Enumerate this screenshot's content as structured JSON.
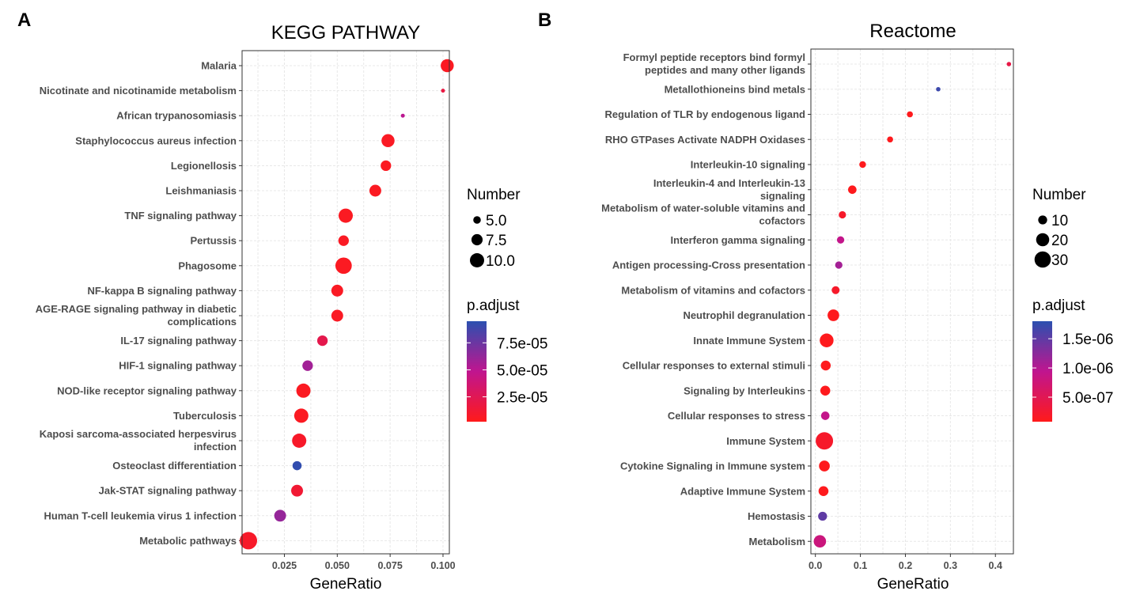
{
  "panels": {
    "a": "A",
    "b": "B"
  },
  "chart_data": [
    {
      "type": "scatter",
      "title": "KEGG PATHWAY",
      "xlabel": "GeneRatio",
      "ylabel": "",
      "xlim": [
        0.005,
        0.103
      ],
      "xticks": [
        0.025,
        0.05,
        0.075,
        0.1
      ],
      "xtick_labels": [
        "0.025",
        "0.050",
        "0.075",
        "0.100"
      ],
      "grid": true,
      "categories": [
        {
          "label": "Malaria",
          "x": 0.102,
          "number": 9,
          "padj": 5e-06
        },
        {
          "label": "Nicotinate and nicotinamide metabolism",
          "x": 0.1,
          "number": 3,
          "padj": 1.8e-05
        },
        {
          "label": "African trypanosomiasis",
          "x": 0.081,
          "number": 3,
          "padj": 5e-05
        },
        {
          "label": "Staphylococcus aureus infection",
          "x": 0.074,
          "number": 9,
          "padj": 6e-06
        },
        {
          "label": "Legionellosis",
          "x": 0.073,
          "number": 7,
          "padj": 5e-06
        },
        {
          "label": "Leishmaniasis",
          "x": 0.068,
          "number": 8,
          "padj": 5e-06
        },
        {
          "label": "TNF signaling pathway",
          "x": 0.054,
          "number": 10,
          "padj": 5e-06
        },
        {
          "label": "Pertussis",
          "x": 0.053,
          "number": 7,
          "padj": 6e-06
        },
        {
          "label": "Phagosome",
          "x": 0.053,
          "number": 12,
          "padj": 5e-06
        },
        {
          "label": "NF-kappa B signaling pathway",
          "x": 0.05,
          "number": 8,
          "padj": 6e-06
        },
        {
          "label": "AGE-RAGE signaling pathway in diabetic\ncomplications",
          "x": 0.05,
          "number": 8,
          "padj": 6e-06
        },
        {
          "label": "IL-17 signaling pathway",
          "x": 0.043,
          "number": 7,
          "padj": 2.2e-05
        },
        {
          "label": "HIF-1 signaling pathway",
          "x": 0.036,
          "number": 7,
          "padj": 5.8e-05
        },
        {
          "label": "NOD-like receptor signaling pathway",
          "x": 0.034,
          "number": 10,
          "padj": 5e-06
        },
        {
          "label": "Tuberculosis",
          "x": 0.033,
          "number": 10,
          "padj": 5e-06
        },
        {
          "label": "Kaposi sarcoma-associated herpesvirus\ninfection",
          "x": 0.032,
          "number": 10,
          "padj": 8e-06
        },
        {
          "label": "Osteoclast differentiation",
          "x": 0.031,
          "number": 6,
          "padj": 9.3e-05
        },
        {
          "label": "Jak-STAT signaling pathway",
          "x": 0.031,
          "number": 8,
          "padj": 1.2e-05
        },
        {
          "label": "Human T-cell leukemia virus 1 infection",
          "x": 0.023,
          "number": 8,
          "padj": 6.2e-05
        },
        {
          "label": "Metabolic pathways",
          "x": 0.008,
          "number": 13,
          "padj": 8e-06
        }
      ],
      "legend": {
        "size_title": "Number",
        "size_labels": [
          "5.0",
          "7.5",
          "10.0"
        ],
        "size_values": [
          5,
          7.5,
          10
        ],
        "color_title": "p.adjust",
        "color_labels": [
          "7.5e-05",
          "5.0e-05",
          "2.5e-05"
        ],
        "color_values": [
          7.5e-05,
          5e-05,
          2.5e-05
        ],
        "color_range": [
          2e-06,
          9.5e-05
        ]
      }
    },
    {
      "type": "scatter",
      "title": "Reactome",
      "xlabel": "GeneRatio",
      "ylabel": "",
      "xlim": [
        -0.01,
        0.44
      ],
      "xticks": [
        0,
        0.1,
        0.2,
        0.3,
        0.4
      ],
      "xtick_labels": [
        "0.0",
        "0.1",
        "0.2",
        "0.3",
        "0.4"
      ],
      "grid": true,
      "categories": [
        {
          "label": "Formyl peptide receptors bind formyl\npeptides and many other ligands",
          "x": 0.43,
          "number": 3,
          "padj": 4e-07
        },
        {
          "label": "Metallothioneins bind metals",
          "x": 0.273,
          "number": 3,
          "padj": 1.7e-06
        },
        {
          "label": "Regulation of TLR by endogenous ligand",
          "x": 0.21,
          "number": 5,
          "padj": 1e-07
        },
        {
          "label": "RHO GTPases Activate NADPH Oxidases",
          "x": 0.166,
          "number": 5,
          "padj": 1e-07
        },
        {
          "label": "Interleukin-10 signaling",
          "x": 0.105,
          "number": 6,
          "padj": 1e-07
        },
        {
          "label": "Interleukin-4 and Interleukin-13\nsignaling",
          "x": 0.082,
          "number": 9,
          "padj": 1e-07
        },
        {
          "label": "Metabolism of water-soluble vitamins and\ncofactors",
          "x": 0.06,
          "number": 7,
          "padj": 2e-07
        },
        {
          "label": "Interferon gamma signaling",
          "x": 0.056,
          "number": 7,
          "padj": 9e-07
        },
        {
          "label": "Antigen processing-Cross presentation",
          "x": 0.052,
          "number": 7,
          "padj": 1.1e-06
        },
        {
          "label": "Metabolism of vitamins and cofactors",
          "x": 0.045,
          "number": 8,
          "padj": 2e-07
        },
        {
          "label": "Neutrophil degranulation",
          "x": 0.04,
          "number": 16,
          "padj": 1e-07
        },
        {
          "label": "Innate Immune System",
          "x": 0.025,
          "number": 22,
          "padj": 1e-07
        },
        {
          "label": "Cellular responses to external stimuli",
          "x": 0.023,
          "number": 12,
          "padj": 1e-07
        },
        {
          "label": "Signaling by Interleukins",
          "x": 0.022,
          "number": 12,
          "padj": 1e-07
        },
        {
          "label": "Cellular responses to stress",
          "x": 0.022,
          "number": 9,
          "padj": 9e-07
        },
        {
          "label": "Immune System",
          "x": 0.02,
          "number": 34,
          "padj": 2e-07
        },
        {
          "label": "Cytokine Signaling in Immune system",
          "x": 0.02,
          "number": 14,
          "padj": 1e-07
        },
        {
          "label": "Adaptive Immune System",
          "x": 0.018,
          "number": 12,
          "padj": 1e-07
        },
        {
          "label": "Hemostasis",
          "x": 0.016,
          "number": 10,
          "padj": 1.5e-06
        },
        {
          "label": "Metabolism",
          "x": 0.01,
          "number": 18,
          "padj": 8e-07
        }
      ],
      "legend": {
        "size_title": "Number",
        "size_labels": [
          "10",
          "20",
          "30"
        ],
        "size_values": [
          10,
          20,
          30
        ],
        "color_title": "p.adjust",
        "color_labels": [
          "1.5e-06",
          "1.0e-06",
          "5.0e-07"
        ],
        "color_values": [
          1.5e-06,
          1e-06,
          5e-07
        ],
        "color_range": [
          8e-08,
          1.8e-06
        ]
      }
    }
  ],
  "colors": {
    "high": "#ff1a1a",
    "mid": "#c0158f",
    "low": "#2b50b0",
    "grid": "#e8e8e8",
    "panel_border": "#333333",
    "text_grey": "#4d4d4d"
  }
}
